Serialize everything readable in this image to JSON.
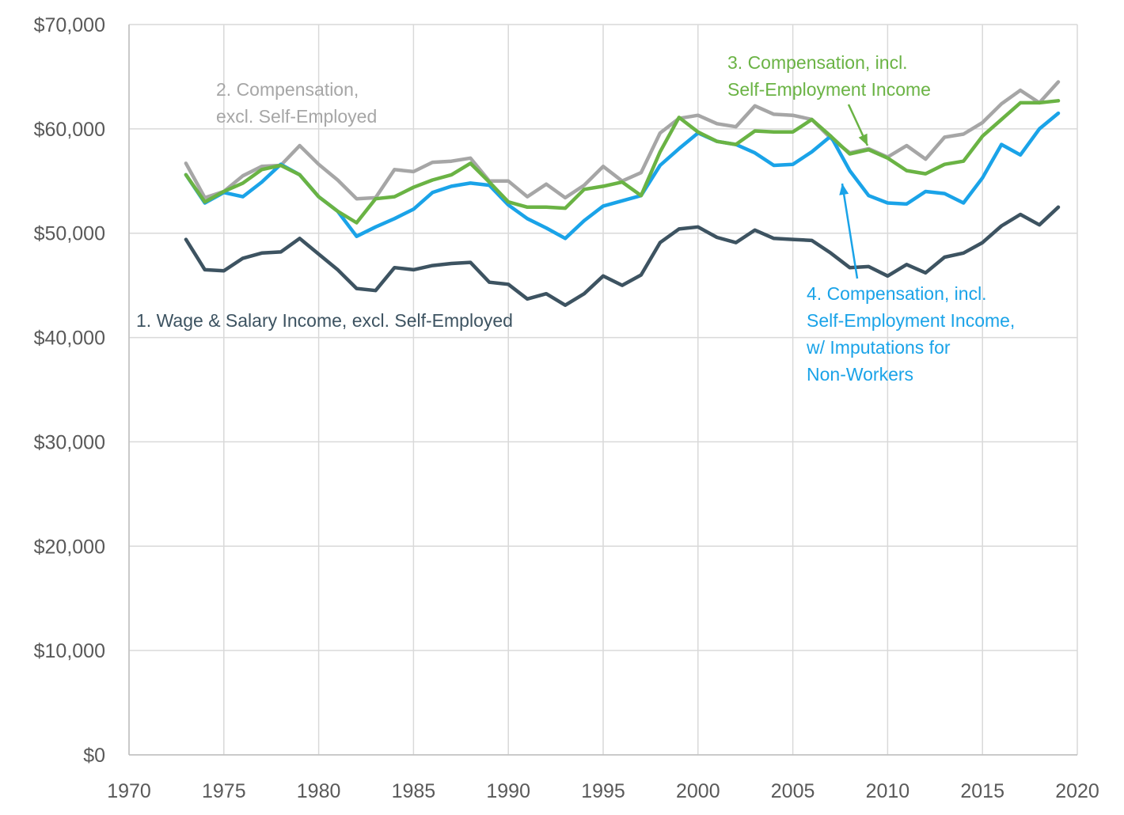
{
  "chart_data": {
    "type": "line",
    "title": "",
    "xlabel": "",
    "ylabel": "",
    "xlim": [
      1970,
      2020
    ],
    "ylim": [
      0,
      70000
    ],
    "x_ticks": [
      "1970",
      "1975",
      "1980",
      "1985",
      "1990",
      "1995",
      "2000",
      "2005",
      "2010",
      "2015",
      "2020"
    ],
    "y_ticks": [
      "$0",
      "$10,000",
      "$20,000",
      "$30,000",
      "$40,000",
      "$50,000",
      "$60,000",
      "$70,000"
    ],
    "grid": true,
    "legend": "none (direct labels)",
    "x": [
      1973,
      1974,
      1975,
      1976,
      1977,
      1978,
      1979,
      1980,
      1981,
      1982,
      1983,
      1984,
      1985,
      1986,
      1987,
      1988,
      1989,
      1990,
      1991,
      1992,
      1993,
      1994,
      1995,
      1996,
      1997,
      1998,
      1999,
      2000,
      2001,
      2002,
      2003,
      2004,
      2005,
      2006,
      2007,
      2008,
      2009,
      2010,
      2011,
      2012,
      2013,
      2014,
      2015,
      2016,
      2017,
      2018,
      2019
    ],
    "series": [
      {
        "name": "1. Wage & Salary Income, excl. Self-Employed",
        "color": "#3d5361",
        "values": [
          49400,
          46500,
          46400,
          47600,
          48100,
          48200,
          49500,
          48000,
          46500,
          44700,
          44500,
          46700,
          46500,
          46900,
          47100,
          47200,
          45300,
          45100,
          43700,
          44200,
          43100,
          44200,
          45900,
          45000,
          46000,
          49100,
          50400,
          50600,
          49600,
          49100,
          50300,
          49500,
          49400,
          49300,
          48100,
          46700,
          46800,
          45900,
          47000,
          46200,
          47700,
          48100,
          49100,
          50700,
          51800,
          50800,
          52500
        ]
      },
      {
        "name": "2. Compensation, excl. Self-Employed",
        "color": "#a6a6a6",
        "values": [
          56700,
          53400,
          54000,
          55500,
          56400,
          56500,
          58400,
          56600,
          55100,
          53300,
          53400,
          56100,
          55900,
          56800,
          56900,
          57200,
          55000,
          55000,
          53500,
          54700,
          53400,
          54600,
          56400,
          55000,
          55800,
          59600,
          61000,
          61300,
          60500,
          60200,
          62200,
          61400,
          61300,
          60900,
          59100,
          57700,
          58100,
          57300,
          58400,
          57100,
          59200,
          59500,
          60600,
          62400,
          63700,
          62500,
          64500
        ]
      },
      {
        "name": "3. Compensation, incl. Self-Employment Income",
        "color": "#6ab344",
        "values": [
          55600,
          53000,
          54000,
          54800,
          56100,
          56500,
          55600,
          53500,
          52100,
          51000,
          53300,
          53500,
          54400,
          55100,
          55600,
          56700,
          54900,
          53000,
          52500,
          52500,
          52400,
          54200,
          54500,
          54900,
          53600,
          57800,
          61100,
          59700,
          58800,
          58500,
          59800,
          59700,
          59700,
          60900,
          59300,
          57600,
          58000,
          57200,
          56000,
          55700,
          56600,
          56900,
          59300,
          60900,
          62500,
          62500,
          62700
        ]
      },
      {
        "name": "4. Compensation, incl. Self-Employment Income, w/ Imputations for Non-Workers",
        "color": "#1aa3e8",
        "values": [
          55600,
          52900,
          53900,
          53500,
          54900,
          56600,
          55600,
          53500,
          52100,
          49700,
          50600,
          51400,
          52300,
          53900,
          54500,
          54800,
          54600,
          52700,
          51400,
          50500,
          49500,
          51200,
          52600,
          53100,
          53600,
          56500,
          58100,
          59600,
          58800,
          58500,
          57700,
          56500,
          56600,
          57800,
          59300,
          56000,
          53600,
          52900,
          52800,
          54000,
          53800,
          52900,
          55300,
          58500,
          57500,
          60000,
          61500
        ]
      }
    ],
    "annotations": [
      {
        "id": "ann1",
        "lines": [
          "1. Wage & Salary Income, excl. Self-Employed"
        ],
        "color": "#3d5361"
      },
      {
        "id": "ann2",
        "lines": [
          "2. Compensation,",
          "excl. Self-Employed"
        ],
        "color": "#a6a6a6"
      },
      {
        "id": "ann3",
        "lines": [
          "3. Compensation, incl.",
          "Self-Employment Income"
        ],
        "color": "#6ab344"
      },
      {
        "id": "ann4",
        "lines": [
          "4. Compensation, incl.",
          "Self-Employment Income,",
          "w/ Imputations for",
          "Non-Workers"
        ],
        "color": "#1aa3e8"
      }
    ]
  }
}
